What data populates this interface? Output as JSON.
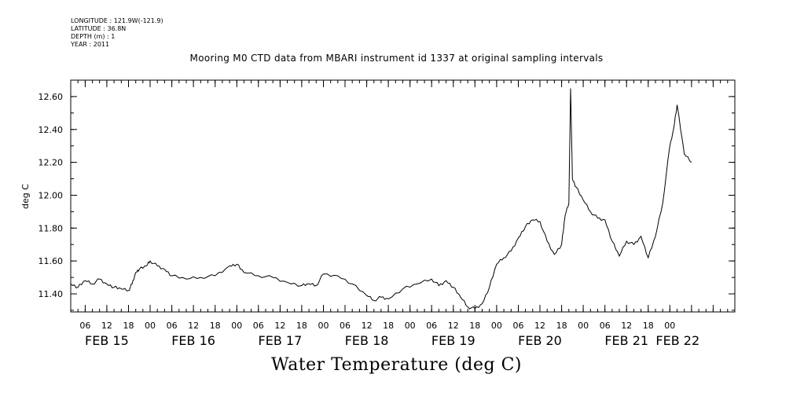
{
  "header": {
    "longitude": "LONGITUDE : 121.9W(-121.9)",
    "latitude": "LATITUDE : 36.8N",
    "depth": "DEPTH (m) : 1",
    "year": "YEAR : 2011"
  },
  "chart_data": {
    "type": "line",
    "title": "Mooring M0 CTD data from MBARI instrument id 1337 at original sampling intervals",
    "xlabel": "Water Temperature (deg C)",
    "ylabel": "deg C",
    "xlim": [
      "2011-02-15T02:00",
      "2011-02-22T18:00"
    ],
    "ylim": [
      11.29,
      12.7
    ],
    "y_ticks": [
      "11.40",
      "11.60",
      "11.80",
      "12.00",
      "12.20",
      "12.40",
      "12.60"
    ],
    "hour_ticks": [
      "06",
      "12",
      "18",
      "00",
      "06",
      "12",
      "18",
      "00",
      "06",
      "12",
      "18",
      "00",
      "06",
      "12",
      "18",
      "00",
      "06",
      "12",
      "18",
      "00",
      "06",
      "12",
      "18",
      "00",
      "06",
      "12",
      "18",
      "00"
    ],
    "day_labels": [
      "FEB 15",
      "FEB 16",
      "FEB 17",
      "FEB 18",
      "FEB 19",
      "FEB 20",
      "FEB 21",
      "FEB 22"
    ],
    "grid": false,
    "series": [
      {
        "x": [
          "2011-02-15T02:00",
          "2011-02-15T04:00",
          "2011-02-15T06:00",
          "2011-02-15T08:00",
          "2011-02-15T10:00",
          "2011-02-15T12:00",
          "2011-02-15T14:00",
          "2011-02-15T16:00",
          "2011-02-15T18:00",
          "2011-02-15T19:00",
          "2011-02-15T20:00",
          "2011-02-15T21:00",
          "2011-02-15T23:00",
          "2011-02-16T00:00",
          "2011-02-16T02:00",
          "2011-02-16T04:00",
          "2011-02-16T06:00",
          "2011-02-16T10:00",
          "2011-02-16T14:00",
          "2011-02-16T18:00",
          "2011-02-16T22:00",
          "2011-02-17T00:00",
          "2011-02-17T02:00",
          "2011-02-17T06:00",
          "2011-02-17T10:00",
          "2011-02-17T14:00",
          "2011-02-17T18:00",
          "2011-02-17T20:00",
          "2011-02-17T22:00",
          "2011-02-18T00:00",
          "2011-02-18T04:00",
          "2011-02-18T08:00",
          "2011-02-18T12:00",
          "2011-02-18T14:00",
          "2011-02-18T16:00",
          "2011-02-18T18:00",
          "2011-02-18T22:00",
          "2011-02-19T02:00",
          "2011-02-19T06:00",
          "2011-02-19T08:00",
          "2011-02-19T10:00",
          "2011-02-19T12:00",
          "2011-02-19T14:00",
          "2011-02-19T16:00",
          "2011-02-19T18:00",
          "2011-02-19T20:00",
          "2011-02-19T22:00",
          "2011-02-20T00:00",
          "2011-02-20T02:00",
          "2011-02-20T04:00",
          "2011-02-20T06:00",
          "2011-02-20T08:00",
          "2011-02-20T10:00",
          "2011-02-20T12:00",
          "2011-02-20T14:00",
          "2011-02-20T16:00",
          "2011-02-20T18:00",
          "2011-02-20T19:00",
          "2011-02-20T20:00",
          "2011-02-20T20:30",
          "2011-02-20T21:00",
          "2011-02-20T22:00",
          "2011-02-21T00:00",
          "2011-02-21T02:00",
          "2011-02-21T04:00",
          "2011-02-21T06:00",
          "2011-02-21T08:00",
          "2011-02-21T10:00",
          "2011-02-21T12:00",
          "2011-02-21T14:00",
          "2011-02-21T16:00",
          "2011-02-21T18:00",
          "2011-02-21T20:00",
          "2011-02-21T22:00",
          "2011-02-22T00:00",
          "2011-02-22T01:00",
          "2011-02-22T02:00",
          "2011-02-22T04:00",
          "2011-02-22T06:00"
        ],
        "y": [
          11.46,
          11.44,
          11.48,
          11.46,
          11.49,
          11.46,
          11.44,
          11.43,
          11.42,
          11.46,
          11.53,
          11.55,
          11.57,
          11.6,
          11.57,
          11.55,
          11.51,
          11.49,
          11.5,
          11.51,
          11.57,
          11.58,
          11.53,
          11.51,
          11.5,
          11.47,
          11.45,
          11.46,
          11.45,
          11.52,
          11.51,
          11.46,
          11.39,
          11.36,
          11.38,
          11.37,
          11.43,
          11.46,
          11.49,
          11.45,
          11.48,
          11.44,
          11.38,
          11.32,
          11.31,
          11.34,
          11.44,
          11.58,
          11.62,
          11.66,
          11.74,
          11.81,
          11.85,
          11.84,
          11.72,
          11.64,
          11.7,
          11.88,
          11.95,
          12.65,
          12.1,
          12.05,
          11.97,
          11.9,
          11.86,
          11.85,
          11.72,
          11.63,
          11.72,
          11.7,
          11.75,
          11.62,
          11.75,
          11.95,
          12.3,
          12.4,
          12.55,
          12.25,
          12.2
        ]
      }
    ]
  }
}
